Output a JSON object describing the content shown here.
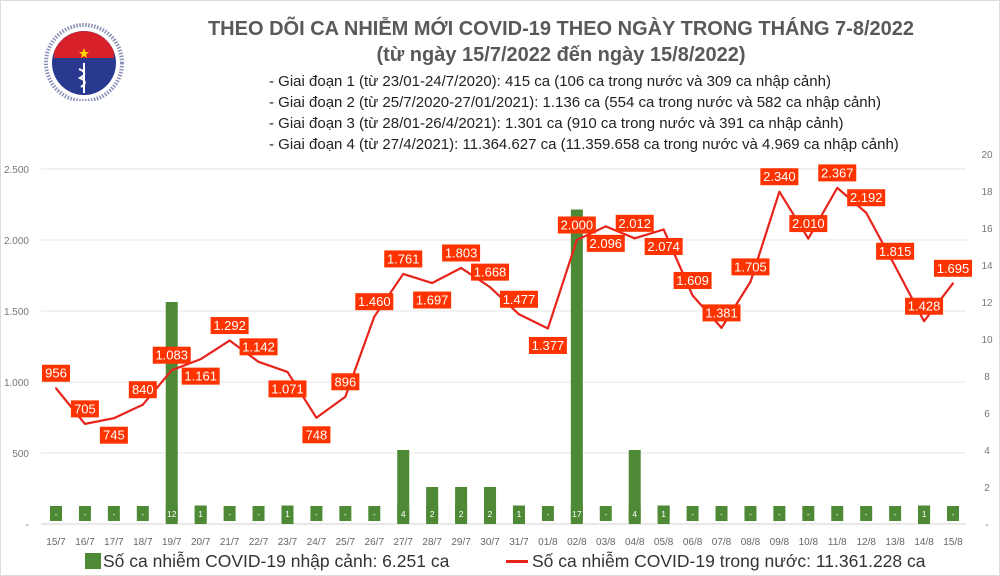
{
  "header": {
    "title": "THEO DÕI CA NHIỄM MỚI COVID-19 THEO NGÀY TRONG THÁNG 7-8/2022",
    "subtitle": "(từ ngày 15/7/2022 đến ngày 15/8/2022)",
    "stages": [
      "- Giai đoạn 1 (từ 23/01-24/7/2020): 415 ca (106 ca trong nước và 309 ca nhập cảnh)",
      "- Giai đoạn 2 (từ 25/7/2020-27/01/2021): 1.136 ca (554 ca trong nước và 582 ca nhập cảnh)",
      "- Giai đoạn 3 (từ 28/01-26/4/2021): 1.301 ca (910 ca trong nước và 391 ca nhập cảnh)",
      "- Giai đoạn 4 (từ 27/4/2021): 11.364.627 ca (11.359.658 ca trong nước và 4.969 ca nhập cảnh)"
    ]
  },
  "logo": {
    "top_text": "BỘ Y TẾ",
    "bottom_text": "MINISTRY OF HEALTH"
  },
  "colors": {
    "bar": "#4e8a35",
    "line": "#e8231b",
    "label_bg": "#ff3300",
    "text": "#595959"
  },
  "chart_data": {
    "type": "bar+line",
    "categories": [
      "15/7",
      "16/7",
      "17/7",
      "18/7",
      "19/7",
      "20/7",
      "21/7",
      "22/7",
      "23/7",
      "24/7",
      "25/7",
      "26/7",
      "27/7",
      "28/7",
      "29/7",
      "30/7",
      "31/7",
      "01/8",
      "02/8",
      "03/8",
      "04/8",
      "05/8",
      "06/8",
      "07/8",
      "08/8",
      "09/8",
      "10/8",
      "11/8",
      "12/8",
      "13/8",
      "14/8",
      "15/8"
    ],
    "series": [
      {
        "name": "Số ca nhiễm COVID-19 nhập cảnh: 6.251 ca",
        "type": "bar",
        "axis": "right",
        "values": [
          0,
          0,
          0,
          0,
          12,
          1,
          0,
          0,
          1,
          0,
          0,
          0,
          4,
          2,
          2,
          2,
          1,
          0,
          17,
          0,
          4,
          1,
          0,
          0,
          0,
          0,
          0,
          0,
          0,
          0,
          1,
          0
        ],
        "labels": [
          "-",
          "-",
          "-",
          "-",
          "12",
          "1",
          "-",
          "-",
          "1",
          "-",
          "-",
          "-",
          "4",
          "2",
          "2",
          "2",
          "1",
          "-",
          "17",
          "-",
          "4",
          "1",
          "-",
          "-",
          "-",
          "-",
          "-",
          "-",
          "-",
          "-",
          "1",
          "-"
        ]
      },
      {
        "name": "Số ca nhiễm COVID-19 trong nước: 11.361.228 ca",
        "type": "line",
        "axis": "left",
        "values": [
          956,
          705,
          745,
          840,
          1083,
          1161,
          1292,
          1142,
          1071,
          748,
          896,
          1460,
          1761,
          1697,
          1803,
          1668,
          1477,
          1377,
          2000,
          2096,
          2012,
          2074,
          1609,
          1381,
          1705,
          2340,
          2010,
          2367,
          2192,
          1815,
          1428,
          1695
        ],
        "labels": [
          "956",
          "705",
          "745",
          "840",
          "1.083",
          "1.161",
          "1.292",
          "1.142",
          "1.071",
          "748",
          "896",
          "1.460",
          "1.761",
          "1.697",
          "1.803",
          "1.668",
          "1.477",
          "1.377",
          "2.000",
          "2.096",
          "2.012",
          "2.074",
          "1.609",
          "1.381",
          "1.705",
          "2.340",
          "2.010",
          "2.367",
          "2.192",
          "1.815",
          "1.428",
          "1.695"
        ]
      }
    ],
    "left_axis": {
      "range": [
        0,
        2500
      ],
      "ticks": [
        "-",
        "500",
        "1.000",
        "1.500",
        "2.000",
        "2.500"
      ]
    },
    "right_axis": {
      "range": [
        0,
        20
      ],
      "ticks": [
        "-",
        "2",
        "4",
        "6",
        "8",
        "10",
        "12",
        "14",
        "16",
        "18",
        "20"
      ]
    },
    "grid": true,
    "legend": "bottom"
  }
}
